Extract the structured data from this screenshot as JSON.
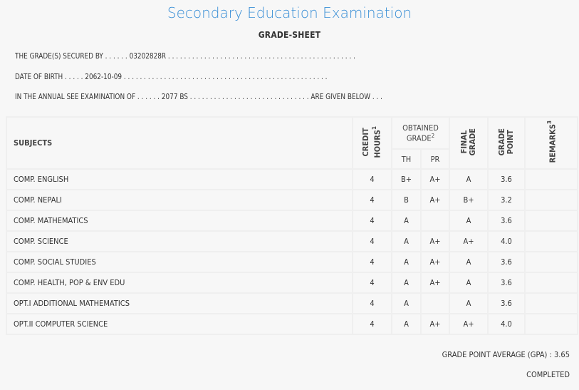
{
  "title": "Secondary Education Examination",
  "subtitle": "GRADE-SHEET",
  "info": {
    "line1": "THE GRADE(S) SECURED BY . . . . . . 03202828R . . . . . . . . . . . . . . . . . . . . . . . . . . . . . . . . . . . . . . . . . . . . . . .",
    "line2": "DATE OF BIRTH . . . . . 2062-10-09 . . . . . . . . . . . . . . . . . . . . . . . . . . . . . . . . . . . . . . . . . . . . . . . . . . .",
    "line3": "IN THE ANNUAL SEE EXAMINATION OF . . . . . . 2077 BS . . . . . . . . . . . . . . . . . . . . . . . . . . . . . . ARE GIVEN BELOW . . ."
  },
  "headers": {
    "subjects": "SUBJECTS",
    "credit1": "CREDIT",
    "credit2": "HOURS",
    "credit_sup": "1",
    "obtained1": "OBTAINED",
    "obtained2": "GRADE",
    "obtained_sup": "2",
    "th": "TH",
    "pr": "PR",
    "final1": "FINAL",
    "final2": "GRADE",
    "gp1": "GRADE",
    "gp2": "POINT",
    "remarks": "REMARKS",
    "remarks_sup": "3"
  },
  "rows": [
    {
      "subject": "COMP. ENGLISH",
      "credit": "4",
      "th": "B+",
      "pr": "A+",
      "final": "A",
      "gp": "3.6",
      "remarks": ""
    },
    {
      "subject": "COMP. NEPALI",
      "credit": "4",
      "th": "B",
      "pr": "A+",
      "final": "B+",
      "gp": "3.2",
      "remarks": ""
    },
    {
      "subject": "COMP. MATHEMATICS",
      "credit": "4",
      "th": "A",
      "pr": "",
      "final": "A",
      "gp": "3.6",
      "remarks": ""
    },
    {
      "subject": "COMP. SCIENCE",
      "credit": "4",
      "th": "A",
      "pr": "A+",
      "final": "A+",
      "gp": "4.0",
      "remarks": ""
    },
    {
      "subject": "COMP. SOCIAL STUDIES",
      "credit": "4",
      "th": "A",
      "pr": "A+",
      "final": "A",
      "gp": "3.6",
      "remarks": ""
    },
    {
      "subject": "COMP. HEALTH, POP & ENV EDU",
      "credit": "4",
      "th": "A",
      "pr": "A+",
      "final": "A",
      "gp": "3.6",
      "remarks": ""
    },
    {
      "subject": "OPT.I ADDITIONAL MATHEMATICS",
      "credit": "4",
      "th": "A",
      "pr": "",
      "final": "A",
      "gp": "3.6",
      "remarks": ""
    },
    {
      "subject": "OPT.II COMPUTER SCIENCE",
      "credit": "4",
      "th": "A",
      "pr": "A+",
      "final": "A+",
      "gp": "4.0",
      "remarks": ""
    }
  ],
  "gpa": "GRADE POINT AVERAGE (GPA) : 3.65",
  "status": "COMPLETED",
  "colors": {
    "title": "#3a8fd6",
    "background": "#f7f7f7"
  }
}
